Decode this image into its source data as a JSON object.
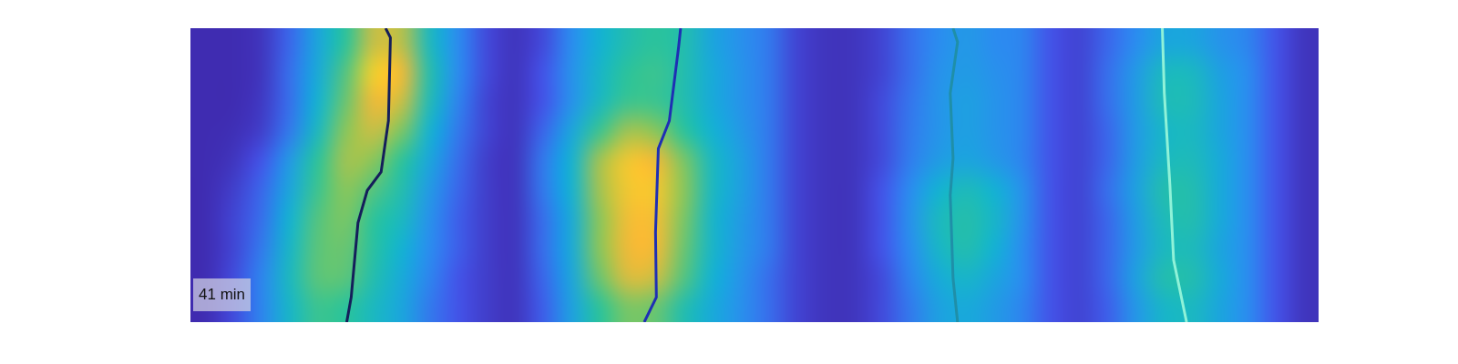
{
  "chart_data": {
    "type": "heatmap",
    "annotation": "41 min",
    "xlim": [
      0,
      40
    ],
    "ylim": [
      0,
      10
    ],
    "tick_labels": false,
    "grid": false,
    "color_range": [
      0,
      1
    ],
    "cells": [
      [
        0.02,
        0.02,
        0.05,
        0.2,
        0.4,
        0.6,
        0.8,
        0.78,
        0.5,
        0.3,
        0.12,
        0.05,
        0.12,
        0.3,
        0.45,
        0.55,
        0.6,
        0.55,
        0.4,
        0.32,
        0.25,
        0.1,
        0.05,
        0.05,
        0.1,
        0.22,
        0.3,
        0.35,
        0.3,
        0.28,
        0.15,
        0.1,
        0.2,
        0.3,
        0.4,
        0.4,
        0.33,
        0.28,
        0.15,
        0.05
      ],
      [
        0.02,
        0.02,
        0.05,
        0.22,
        0.42,
        0.65,
        0.9,
        0.85,
        0.55,
        0.3,
        0.12,
        0.05,
        0.15,
        0.32,
        0.48,
        0.6,
        0.62,
        0.55,
        0.42,
        0.33,
        0.25,
        0.1,
        0.05,
        0.05,
        0.1,
        0.22,
        0.32,
        0.36,
        0.32,
        0.28,
        0.15,
        0.1,
        0.22,
        0.35,
        0.5,
        0.5,
        0.38,
        0.3,
        0.15,
        0.05
      ],
      [
        0.02,
        0.02,
        0.06,
        0.22,
        0.45,
        0.68,
        0.85,
        0.8,
        0.52,
        0.28,
        0.1,
        0.05,
        0.15,
        0.32,
        0.5,
        0.62,
        0.62,
        0.55,
        0.42,
        0.33,
        0.25,
        0.1,
        0.05,
        0.05,
        0.12,
        0.24,
        0.33,
        0.38,
        0.33,
        0.28,
        0.15,
        0.1,
        0.22,
        0.36,
        0.52,
        0.52,
        0.4,
        0.3,
        0.15,
        0.05
      ],
      [
        0.02,
        0.03,
        0.08,
        0.25,
        0.5,
        0.72,
        0.8,
        0.7,
        0.45,
        0.25,
        0.1,
        0.05,
        0.2,
        0.4,
        0.62,
        0.75,
        0.72,
        0.6,
        0.45,
        0.35,
        0.25,
        0.1,
        0.05,
        0.05,
        0.12,
        0.25,
        0.33,
        0.38,
        0.33,
        0.28,
        0.15,
        0.1,
        0.2,
        0.35,
        0.48,
        0.5,
        0.4,
        0.3,
        0.15,
        0.05
      ],
      [
        0.02,
        0.05,
        0.15,
        0.35,
        0.6,
        0.75,
        0.72,
        0.6,
        0.4,
        0.22,
        0.08,
        0.05,
        0.25,
        0.45,
        0.75,
        0.88,
        0.85,
        0.7,
        0.5,
        0.38,
        0.25,
        0.1,
        0.05,
        0.05,
        0.12,
        0.26,
        0.36,
        0.4,
        0.35,
        0.28,
        0.15,
        0.1,
        0.2,
        0.36,
        0.5,
        0.52,
        0.42,
        0.3,
        0.15,
        0.05
      ],
      [
        0.02,
        0.08,
        0.2,
        0.4,
        0.62,
        0.72,
        0.65,
        0.55,
        0.35,
        0.2,
        0.08,
        0.05,
        0.25,
        0.45,
        0.75,
        0.88,
        0.88,
        0.72,
        0.5,
        0.38,
        0.25,
        0.1,
        0.05,
        0.05,
        0.15,
        0.3,
        0.45,
        0.52,
        0.45,
        0.32,
        0.15,
        0.1,
        0.22,
        0.38,
        0.55,
        0.55,
        0.42,
        0.3,
        0.15,
        0.05
      ],
      [
        0.02,
        0.1,
        0.22,
        0.45,
        0.65,
        0.7,
        0.6,
        0.5,
        0.32,
        0.18,
        0.08,
        0.05,
        0.22,
        0.42,
        0.72,
        0.86,
        0.86,
        0.7,
        0.48,
        0.36,
        0.25,
        0.1,
        0.05,
        0.05,
        0.15,
        0.32,
        0.5,
        0.56,
        0.48,
        0.32,
        0.15,
        0.1,
        0.2,
        0.36,
        0.52,
        0.55,
        0.42,
        0.3,
        0.15,
        0.05
      ],
      [
        0.02,
        0.1,
        0.25,
        0.48,
        0.66,
        0.68,
        0.58,
        0.45,
        0.3,
        0.18,
        0.08,
        0.05,
        0.22,
        0.42,
        0.72,
        0.85,
        0.85,
        0.68,
        0.48,
        0.35,
        0.25,
        0.1,
        0.05,
        0.05,
        0.15,
        0.3,
        0.48,
        0.55,
        0.45,
        0.3,
        0.15,
        0.1,
        0.2,
        0.35,
        0.5,
        0.52,
        0.4,
        0.3,
        0.15,
        0.05
      ],
      [
        0.02,
        0.12,
        0.28,
        0.5,
        0.66,
        0.66,
        0.55,
        0.42,
        0.28,
        0.15,
        0.08,
        0.05,
        0.2,
        0.4,
        0.68,
        0.82,
        0.8,
        0.65,
        0.45,
        0.33,
        0.22,
        0.1,
        0.05,
        0.05,
        0.12,
        0.28,
        0.42,
        0.48,
        0.4,
        0.3,
        0.15,
        0.1,
        0.2,
        0.38,
        0.55,
        0.55,
        0.42,
        0.3,
        0.15,
        0.05
      ],
      [
        0.02,
        0.12,
        0.28,
        0.48,
        0.62,
        0.6,
        0.5,
        0.4,
        0.25,
        0.15,
        0.08,
        0.05,
        0.18,
        0.38,
        0.6,
        0.7,
        0.68,
        0.55,
        0.42,
        0.32,
        0.22,
        0.1,
        0.05,
        0.05,
        0.12,
        0.25,
        0.38,
        0.42,
        0.36,
        0.28,
        0.15,
        0.1,
        0.18,
        0.34,
        0.48,
        0.5,
        0.4,
        0.3,
        0.15,
        0.05
      ]
    ],
    "series": [
      {
        "type": "line",
        "color": "#141e5a",
        "x": [
          6.92,
          7.09,
          7.02,
          6.76,
          6.27,
          5.94,
          5.7,
          5.54
        ],
        "values": [
          0,
          0.32,
          3.15,
          4.89,
          5.52,
          6.62,
          9.15,
          10
        ]
      },
      {
        "type": "line",
        "color": "#1e2fb4",
        "x": [
          17.38,
          17.31,
          16.98,
          16.59,
          16.49,
          16.52,
          16.09
        ],
        "values": [
          0,
          0.63,
          3.15,
          4.1,
          6.94,
          9.15,
          10
        ]
      },
      {
        "type": "line",
        "color": "#1f8fa8",
        "x": [
          27.04,
          27.2,
          26.94,
          27.04,
          26.94,
          27.04,
          27.2
        ],
        "values": [
          0,
          0.47,
          2.21,
          4.42,
          5.68,
          8.52,
          10
        ]
      },
      {
        "type": "line",
        "color": "#8ff2d8",
        "x": [
          34.46,
          34.53,
          34.73,
          34.86,
          35.32
        ],
        "values": [
          0,
          2.21,
          5.36,
          7.89,
          10
        ]
      }
    ]
  }
}
